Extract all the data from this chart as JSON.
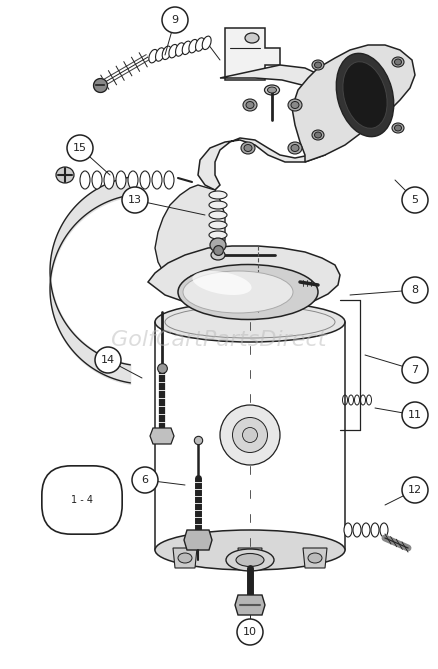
{
  "watermark": "GolfCartPartsDirect",
  "background_color": "#ffffff",
  "line_color": "#222222",
  "label_color": "#111111",
  "watermark_color": "#bbbbbb",
  "figsize": [
    4.38,
    6.69
  ],
  "dpi": 100,
  "image_path": null
}
